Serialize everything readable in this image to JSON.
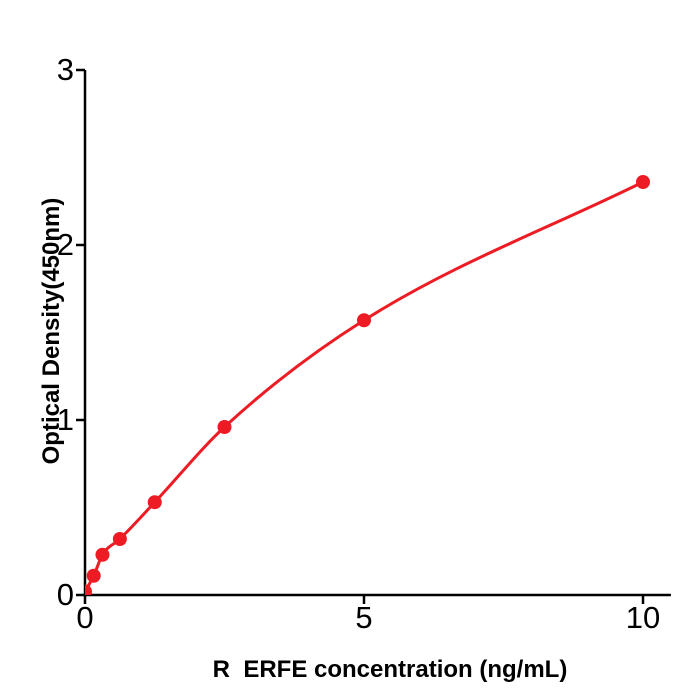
{
  "figure": {
    "background": "#ffffff"
  },
  "chart_data": {
    "type": "line",
    "title": "",
    "xlabel": "R  ERFE concentration (ng/mL)",
    "ylabel": "Optical Density(450nm)",
    "x": [
      0,
      0.156,
      0.313,
      0.625,
      1.25,
      2.5,
      5,
      10
    ],
    "y": [
      0.02,
      0.11,
      0.23,
      0.32,
      0.53,
      0.96,
      1.57,
      2.36
    ],
    "x_ticks": [
      0,
      5,
      10
    ],
    "y_ticks": [
      0,
      1,
      2,
      3
    ],
    "xlim": [
      0,
      10.5
    ],
    "ylim": [
      0,
      3
    ],
    "grid": false,
    "legend_position": "none",
    "line_color": "#ed1c24",
    "marker_color": "#ed1c24",
    "axis_color": "#000000",
    "curve_style": "smooth-fit-through-points",
    "marker_shape": "circle"
  }
}
